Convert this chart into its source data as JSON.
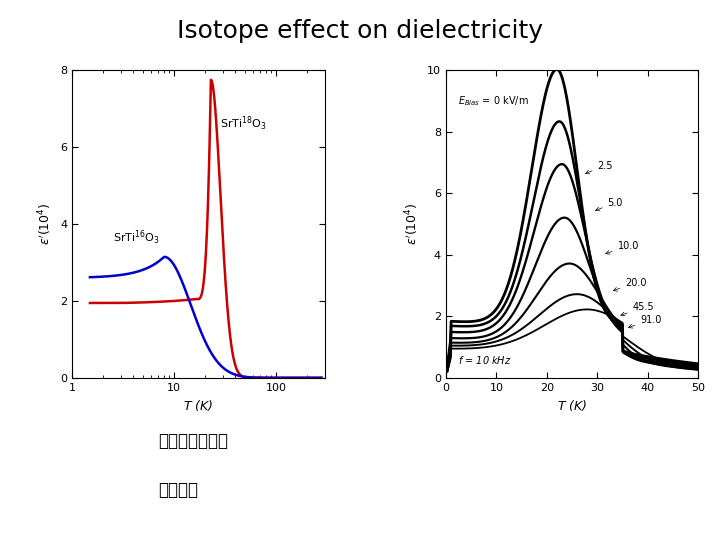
{
  "title": "Isotope effect on dielectricity",
  "title_fontsize": 18,
  "bg_color": "#ffffff",
  "text_bottom_1": "東工大　伊藤ら",
  "text_bottom_2": "例えば、",
  "left_plot": {
    "ylabel": "ε’(10⁴)",
    "xlabel": "T (K)",
    "ylim": [
      0,
      8
    ],
    "yticks": [
      0,
      2,
      4,
      6,
      8
    ],
    "xlim_log": [
      1,
      300
    ],
    "label_18": "SrTi$^{18}$O$_3$",
    "label_16": "SrTi$^{16}$O$_3$",
    "color_18": "#cc0000",
    "color_16": "#0000cc",
    "linewidth": 1.8
  },
  "right_plot": {
    "ylabel": "ε’(10⁴)",
    "xlabel": "T (K)",
    "ylim": [
      0,
      10
    ],
    "yticks": [
      0,
      2,
      4,
      6,
      8,
      10
    ],
    "xlim": [
      0,
      50
    ],
    "xticks": [
      0,
      10,
      20,
      30,
      40,
      50
    ],
    "e_labels": [
      "2.5",
      "5.0",
      "10.0",
      "20.0",
      "45.5",
      "91.0"
    ],
    "linewidth": 1.5
  }
}
